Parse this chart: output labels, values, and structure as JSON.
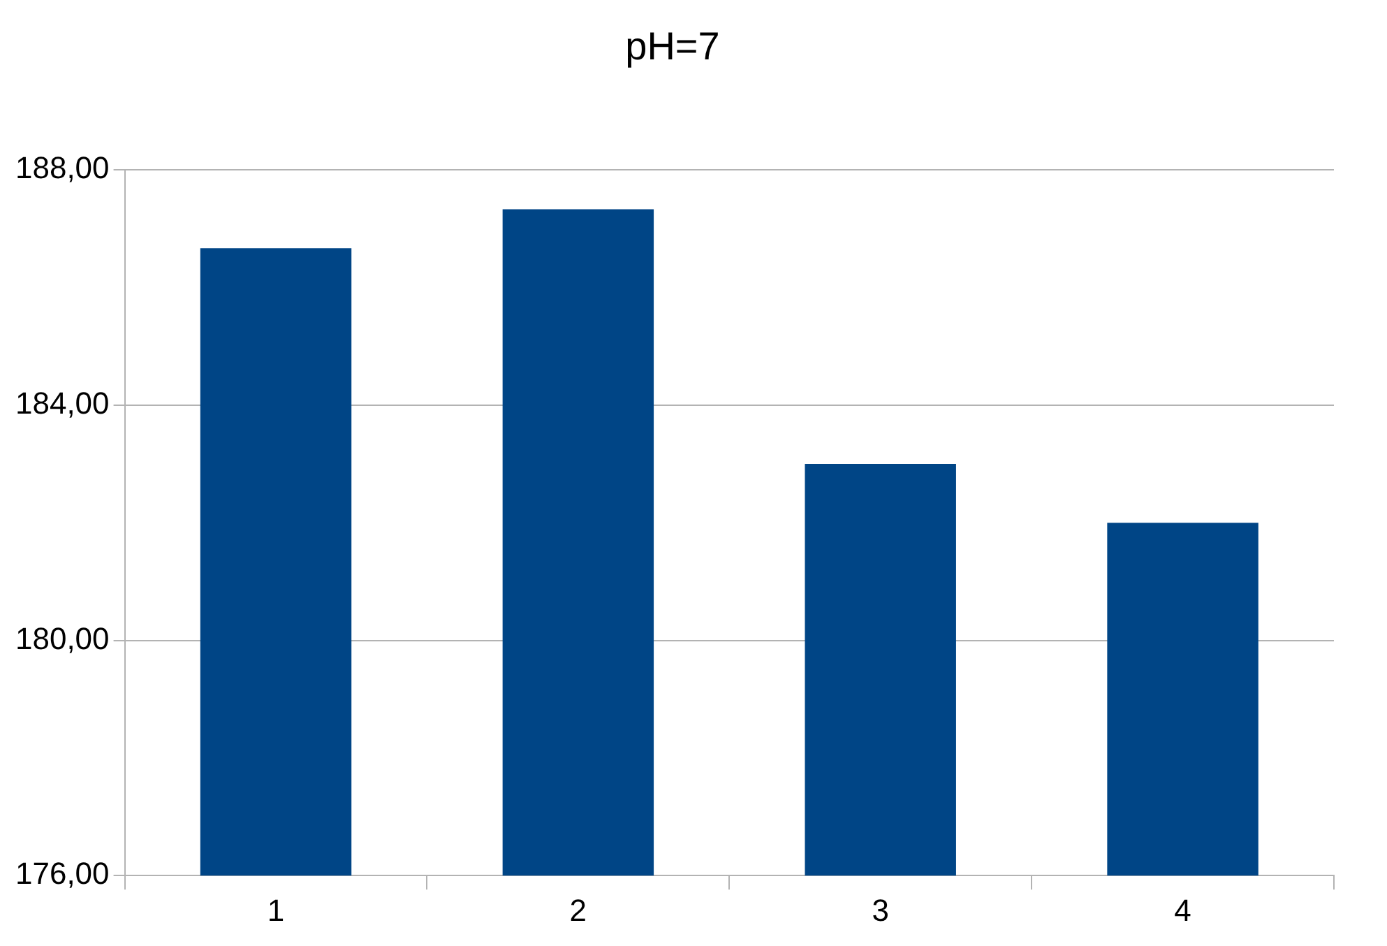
{
  "chart_data": {
    "type": "bar",
    "title": "pH=7",
    "categories": [
      "1",
      "2",
      "3",
      "4"
    ],
    "values": [
      186.67,
      187.33,
      183.0,
      182.0
    ],
    "color": "#004586",
    "ylim": [
      176,
      188
    ],
    "yticks": [
      {
        "value": 176,
        "label": "176,00"
      },
      {
        "value": 180,
        "label": "180,00"
      },
      {
        "value": 184,
        "label": "184,00"
      },
      {
        "value": 188,
        "label": "188,00"
      }
    ],
    "grid": "y"
  }
}
